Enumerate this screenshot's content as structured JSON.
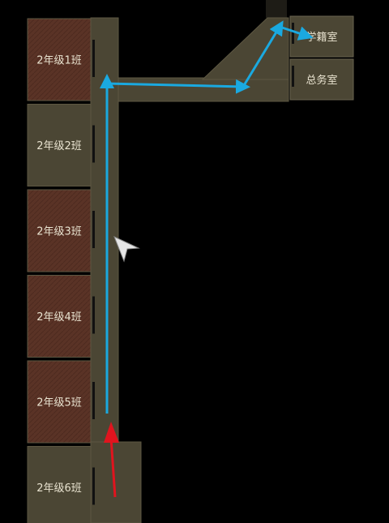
{
  "classrooms": [
    {
      "label": "2年级1班",
      "style": "brick"
    },
    {
      "label": "2年级2班",
      "style": "plain"
    },
    {
      "label": "2年级3班",
      "style": "brick"
    },
    {
      "label": "2年级4班",
      "style": "brick"
    },
    {
      "label": "2年级5班",
      "style": "brick"
    },
    {
      "label": "2年级6班",
      "style": "plain"
    }
  ],
  "offices": [
    {
      "label": "学籍室"
    },
    {
      "label": "总务室"
    }
  ],
  "colors": {
    "background": "#000000",
    "floor": "#4b4634",
    "floor_edge": "#5d5742",
    "brick_room": "#5a3326",
    "plain_room": "#4b4634",
    "route": "#1aa9e0",
    "start_arrow": "#e0141e",
    "pointer": "#e6e6e6"
  },
  "icons": {
    "route": "blue-route-arrow",
    "start": "red-start-arrow",
    "pointer": "mouse-pointer-icon"
  }
}
